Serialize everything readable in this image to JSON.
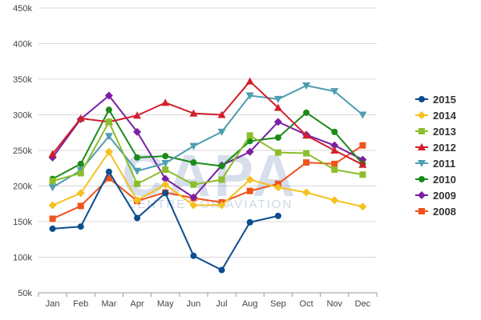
{
  "chart_data": {
    "type": "line",
    "title": "",
    "xlabel": "",
    "ylabel": "",
    "categories": [
      "Jan",
      "Feb",
      "Mar",
      "Apr",
      "May",
      "Jun",
      "Jul",
      "Aug",
      "Sep",
      "Oct",
      "Nov",
      "Dec"
    ],
    "ylim": [
      50000,
      450000
    ],
    "yticks": [
      50000,
      100000,
      150000,
      200000,
      250000,
      300000,
      350000,
      400000,
      450000
    ],
    "ytick_labels": [
      "50k",
      "100k",
      "150k",
      "200k",
      "250k",
      "300k",
      "350k",
      "400k",
      "450k"
    ],
    "grid": "horizontal",
    "legend_position": "right",
    "watermark": {
      "main": "CAPA",
      "sub": "CENTRE FOR AVIATION"
    },
    "series": [
      {
        "name": "2015",
        "color": "#0d4d8f",
        "marker": "circle",
        "values": [
          140000,
          143000,
          220000,
          155000,
          190000,
          102000,
          82000,
          149000,
          158000,
          null,
          null,
          null
        ]
      },
      {
        "name": "2014",
        "color": "#f5c120",
        "marker": "diamond",
        "values": [
          173000,
          190000,
          248000,
          180000,
          202000,
          173000,
          173000,
          209000,
          198000,
          191000,
          180000,
          171000
        ]
      },
      {
        "name": "2013",
        "color": "#8cbe2b",
        "marker": "square",
        "values": [
          207000,
          218000,
          290000,
          203000,
          223000,
          202000,
          209000,
          271000,
          247000,
          246000,
          223000,
          216000
        ]
      },
      {
        "name": "2012",
        "color": "#d0202c",
        "marker": "triangle",
        "values": [
          245000,
          295000,
          290000,
          299000,
          317000,
          302000,
          300000,
          347000,
          310000,
          271000,
          250000,
          230000
        ]
      },
      {
        "name": "2011",
        "color": "#4f9db0",
        "marker": "triangle-down",
        "values": [
          198000,
          222000,
          270000,
          221000,
          232000,
          256000,
          276000,
          327000,
          322000,
          341000,
          333000,
          300000
        ]
      },
      {
        "name": "2010",
        "color": "#1a8a1a",
        "marker": "circle",
        "values": [
          210000,
          231000,
          307000,
          240000,
          242000,
          233000,
          228000,
          263000,
          268000,
          303000,
          276000,
          231000
        ]
      },
      {
        "name": "2009",
        "color": "#7a1fa2",
        "marker": "diamond",
        "values": [
          240000,
          294000,
          327000,
          276000,
          210000,
          184000,
          229000,
          248000,
          290000,
          272000,
          257000,
          237000
        ]
      },
      {
        "name": "2008",
        "color": "#f0531b",
        "marker": "square",
        "values": [
          154000,
          172000,
          211000,
          179000,
          191000,
          183000,
          177000,
          193000,
          203000,
          233000,
          231000,
          257000
        ]
      }
    ]
  }
}
